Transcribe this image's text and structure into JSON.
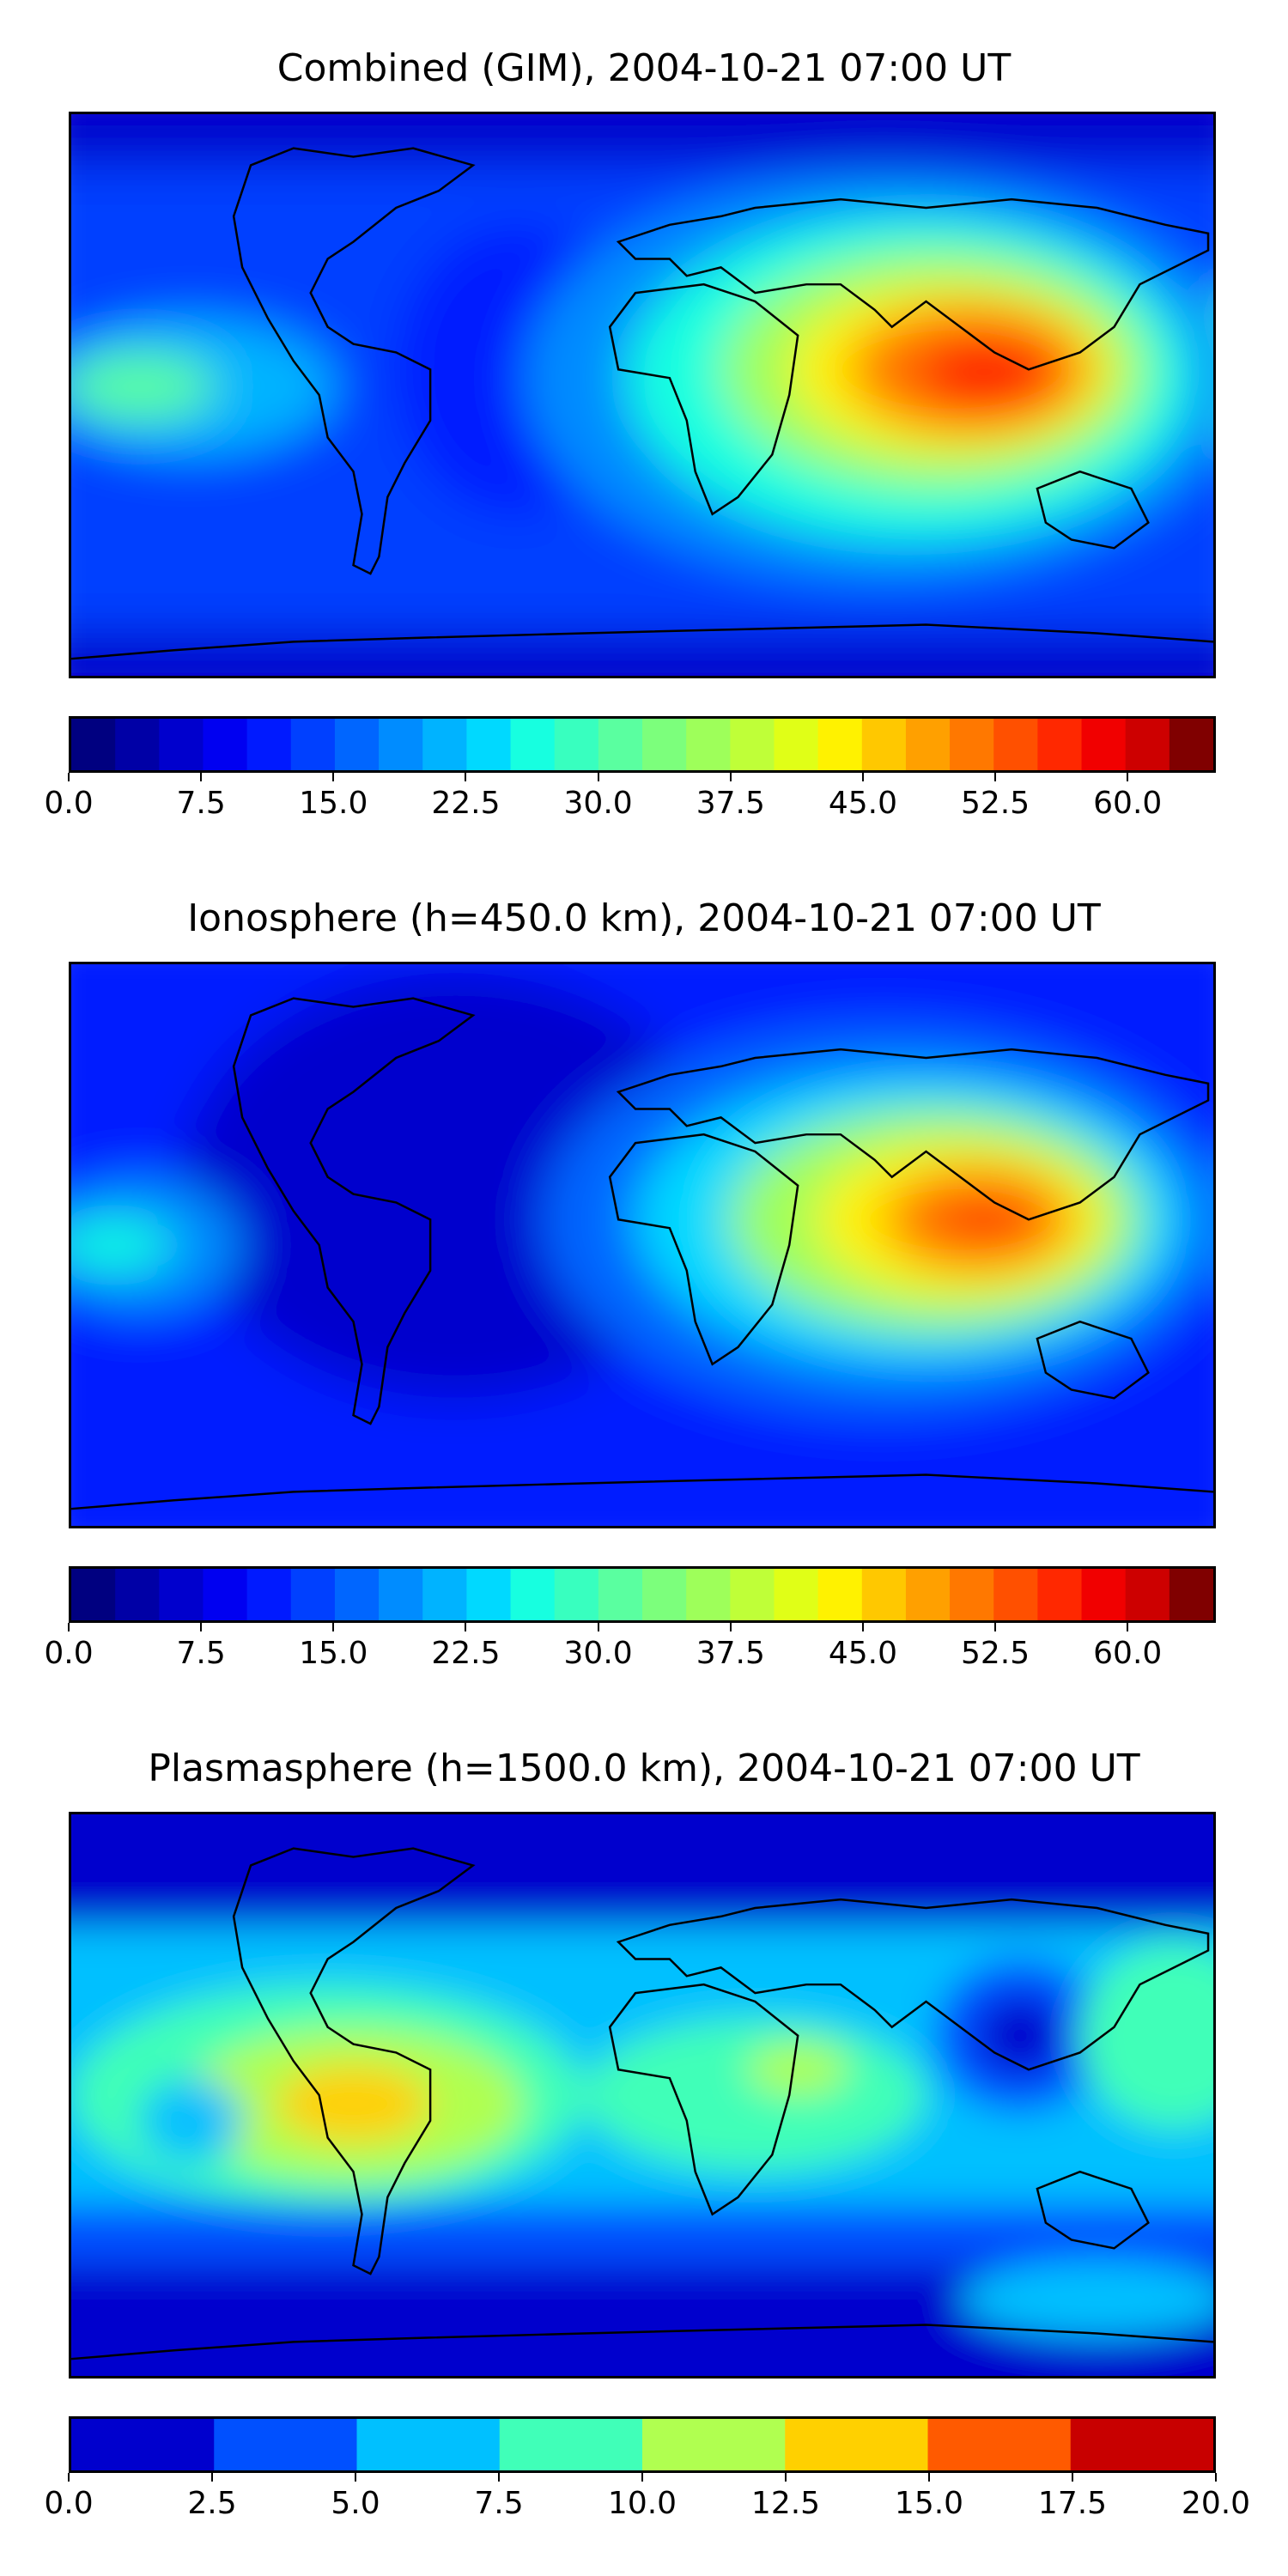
{
  "panels": [
    {
      "title": "Combined (GIM), 2004-10-21 07:00 UT",
      "colorbar": {
        "ticks": [
          "0.0",
          "7.5",
          "15.0",
          "22.5",
          "30.0",
          "37.5",
          "45.0",
          "52.5",
          "60.0"
        ],
        "tick_values": [
          0,
          7.5,
          15,
          22.5,
          30,
          37.5,
          45,
          52.5,
          60
        ],
        "min": 0,
        "max": 65,
        "levels": 26
      }
    },
    {
      "title": "Ionosphere  (h=450.0 km), 2004-10-21 07:00 UT",
      "colorbar": {
        "ticks": [
          "0.0",
          "7.5",
          "15.0",
          "22.5",
          "30.0",
          "37.5",
          "45.0",
          "52.5",
          "60.0"
        ],
        "tick_values": [
          0,
          7.5,
          15,
          22.5,
          30,
          37.5,
          45,
          52.5,
          60
        ],
        "min": 0,
        "max": 65,
        "levels": 26
      }
    },
    {
      "title": "Plasmasphere (h=1500.0 km), 2004-10-21 07:00 UT",
      "colorbar": {
        "ticks": [
          "0.0",
          "2.5",
          "5.0",
          "7.5",
          "10.0",
          "12.5",
          "15.0",
          "17.5",
          "20.0"
        ],
        "tick_values": [
          0,
          2.5,
          5,
          7.5,
          10,
          12.5,
          15,
          17.5,
          20
        ],
        "min": 0,
        "max": 20,
        "levels": 8
      }
    }
  ],
  "colormap": "jet",
  "jet26": [
    "#000080",
    "#0000a6",
    "#0000cd",
    "#0000f1",
    "#001aff",
    "#0040ff",
    "#0066ff",
    "#008cff",
    "#00b3ff",
    "#00d9ff",
    "#17ffe0",
    "#38ffbf",
    "#5affa0",
    "#7cff7c",
    "#9eff5a",
    "#bfff38",
    "#e0ff17",
    "#fff200",
    "#ffc800",
    "#ffa000",
    "#ff7800",
    "#ff5000",
    "#ff2800",
    "#f10000",
    "#cd0000",
    "#800000"
  ],
  "jet8": [
    "#0000cd",
    "#0050ff",
    "#00c0ff",
    "#40ffb8",
    "#b0ff50",
    "#ffd000",
    "#ff5a00",
    "#c80000"
  ]
}
